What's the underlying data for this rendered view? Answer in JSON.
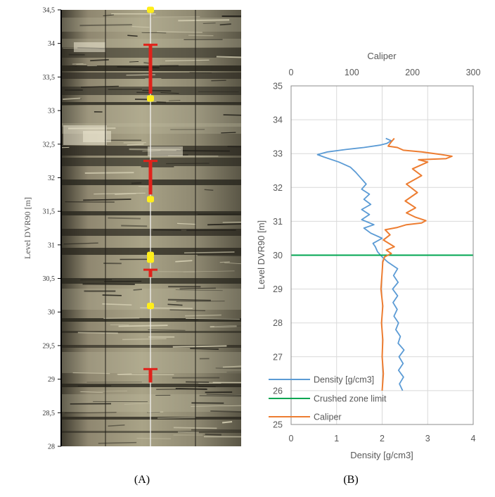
{
  "panel_a": {
    "caption": "(A)",
    "ylabel": "Level DVR90 [m]",
    "y_ticks": [
      "34,5",
      "34",
      "33,5",
      "33",
      "32,5",
      "32",
      "31,5",
      "31",
      "30,5",
      "30",
      "29,5",
      "29",
      "28,5",
      "28"
    ],
    "ylim": [
      28,
      34.5
    ],
    "marker_colors": {
      "red": "#e0221b",
      "yellow": "#ffee1a"
    },
    "red_intervals": [
      [
        33.98,
        33.25
      ],
      [
        32.25,
        31.75
      ],
      [
        30.63,
        30.52
      ],
      [
        29.15,
        28.95
      ]
    ],
    "yellow_points": [
      34.5,
      33.18,
      31.68,
      30.85,
      30.78,
      30.09
    ]
  },
  "chart_data": {
    "type": "line",
    "caption": "(B)",
    "xlabel_bottom": "Density [g/cm3]",
    "xlabel_top": "Caliper",
    "ylabel": "Level DVR90 [m]",
    "xlim_bottom": [
      0,
      4
    ],
    "xlim_top": [
      0,
      300
    ],
    "ylim": [
      25,
      35
    ],
    "x_ticks_bottom": [
      "0",
      "1",
      "2",
      "3",
      "4"
    ],
    "x_ticks_top": [
      "0",
      "100",
      "200",
      "300"
    ],
    "y_ticks": [
      "25",
      "26",
      "27",
      "28",
      "29",
      "30",
      "31",
      "32",
      "33",
      "34",
      "35"
    ],
    "grid": true,
    "legend_position": "bottom-left",
    "series": [
      {
        "name": "Density [g/cm3]",
        "color": "#5b9bd5",
        "axis": "bottom",
        "points": [
          [
            2.45,
            26.0
          ],
          [
            2.38,
            26.2
          ],
          [
            2.47,
            26.4
          ],
          [
            2.36,
            26.6
          ],
          [
            2.46,
            26.8
          ],
          [
            2.37,
            27.0
          ],
          [
            2.48,
            27.2
          ],
          [
            2.35,
            27.4
          ],
          [
            2.4,
            27.6
          ],
          [
            2.3,
            27.8
          ],
          [
            2.36,
            28.0
          ],
          [
            2.26,
            28.2
          ],
          [
            2.33,
            28.4
          ],
          [
            2.24,
            28.6
          ],
          [
            2.34,
            28.8
          ],
          [
            2.23,
            29.0
          ],
          [
            2.35,
            29.2
          ],
          [
            2.25,
            29.4
          ],
          [
            2.34,
            29.6
          ],
          [
            2.12,
            29.8
          ],
          [
            2.0,
            29.95
          ],
          [
            1.9,
            30.1
          ],
          [
            1.85,
            30.25
          ],
          [
            1.8,
            30.35
          ],
          [
            2.0,
            30.5
          ],
          [
            1.75,
            30.65
          ],
          [
            1.6,
            30.8
          ],
          [
            1.82,
            30.9
          ],
          [
            1.55,
            31.05
          ],
          [
            1.72,
            31.2
          ],
          [
            1.55,
            31.35
          ],
          [
            1.75,
            31.5
          ],
          [
            1.6,
            31.65
          ],
          [
            1.72,
            31.8
          ],
          [
            1.55,
            31.95
          ],
          [
            1.65,
            32.1
          ],
          [
            1.55,
            32.25
          ],
          [
            1.42,
            32.45
          ],
          [
            1.3,
            32.6
          ],
          [
            1.05,
            32.75
          ],
          [
            0.72,
            32.9
          ],
          [
            0.58,
            32.97
          ],
          [
            0.8,
            33.05
          ],
          [
            1.2,
            33.12
          ],
          [
            1.6,
            33.18
          ],
          [
            1.95,
            33.25
          ],
          [
            2.1,
            33.3
          ],
          [
            2.2,
            33.38
          ],
          [
            2.08,
            33.45
          ]
        ]
      },
      {
        "name": "Crushed zone limit",
        "color": "#00a651",
        "axis": "bottom",
        "points": [
          [
            0,
            30.0
          ],
          [
            4,
            30.0
          ]
        ]
      },
      {
        "name": "Caliper",
        "color": "#ed7d31",
        "axis": "top",
        "points": [
          [
            150,
            26.0
          ],
          [
            152,
            26.5
          ],
          [
            150,
            27.0
          ],
          [
            151,
            27.5
          ],
          [
            149,
            28.0
          ],
          [
            151,
            28.5
          ],
          [
            148,
            29.0
          ],
          [
            150,
            29.5
          ],
          [
            151,
            29.8
          ],
          [
            154,
            29.95
          ],
          [
            165,
            30.05
          ],
          [
            157,
            30.15
          ],
          [
            170,
            30.25
          ],
          [
            152,
            30.45
          ],
          [
            163,
            30.6
          ],
          [
            155,
            30.75
          ],
          [
            175,
            30.82
          ],
          [
            190,
            30.9
          ],
          [
            215,
            30.95
          ],
          [
            222,
            31.02
          ],
          [
            205,
            31.12
          ],
          [
            190,
            31.25
          ],
          [
            205,
            31.4
          ],
          [
            188,
            31.6
          ],
          [
            208,
            31.85
          ],
          [
            190,
            32.1
          ],
          [
            215,
            32.35
          ],
          [
            200,
            32.55
          ],
          [
            225,
            32.75
          ],
          [
            210,
            32.82
          ],
          [
            255,
            32.85
          ],
          [
            265,
            32.92
          ],
          [
            245,
            32.98
          ],
          [
            215,
            33.05
          ],
          [
            185,
            33.1
          ],
          [
            175,
            33.18
          ],
          [
            160,
            33.22
          ],
          [
            165,
            33.35
          ],
          [
            170,
            33.45
          ]
        ]
      }
    ]
  }
}
